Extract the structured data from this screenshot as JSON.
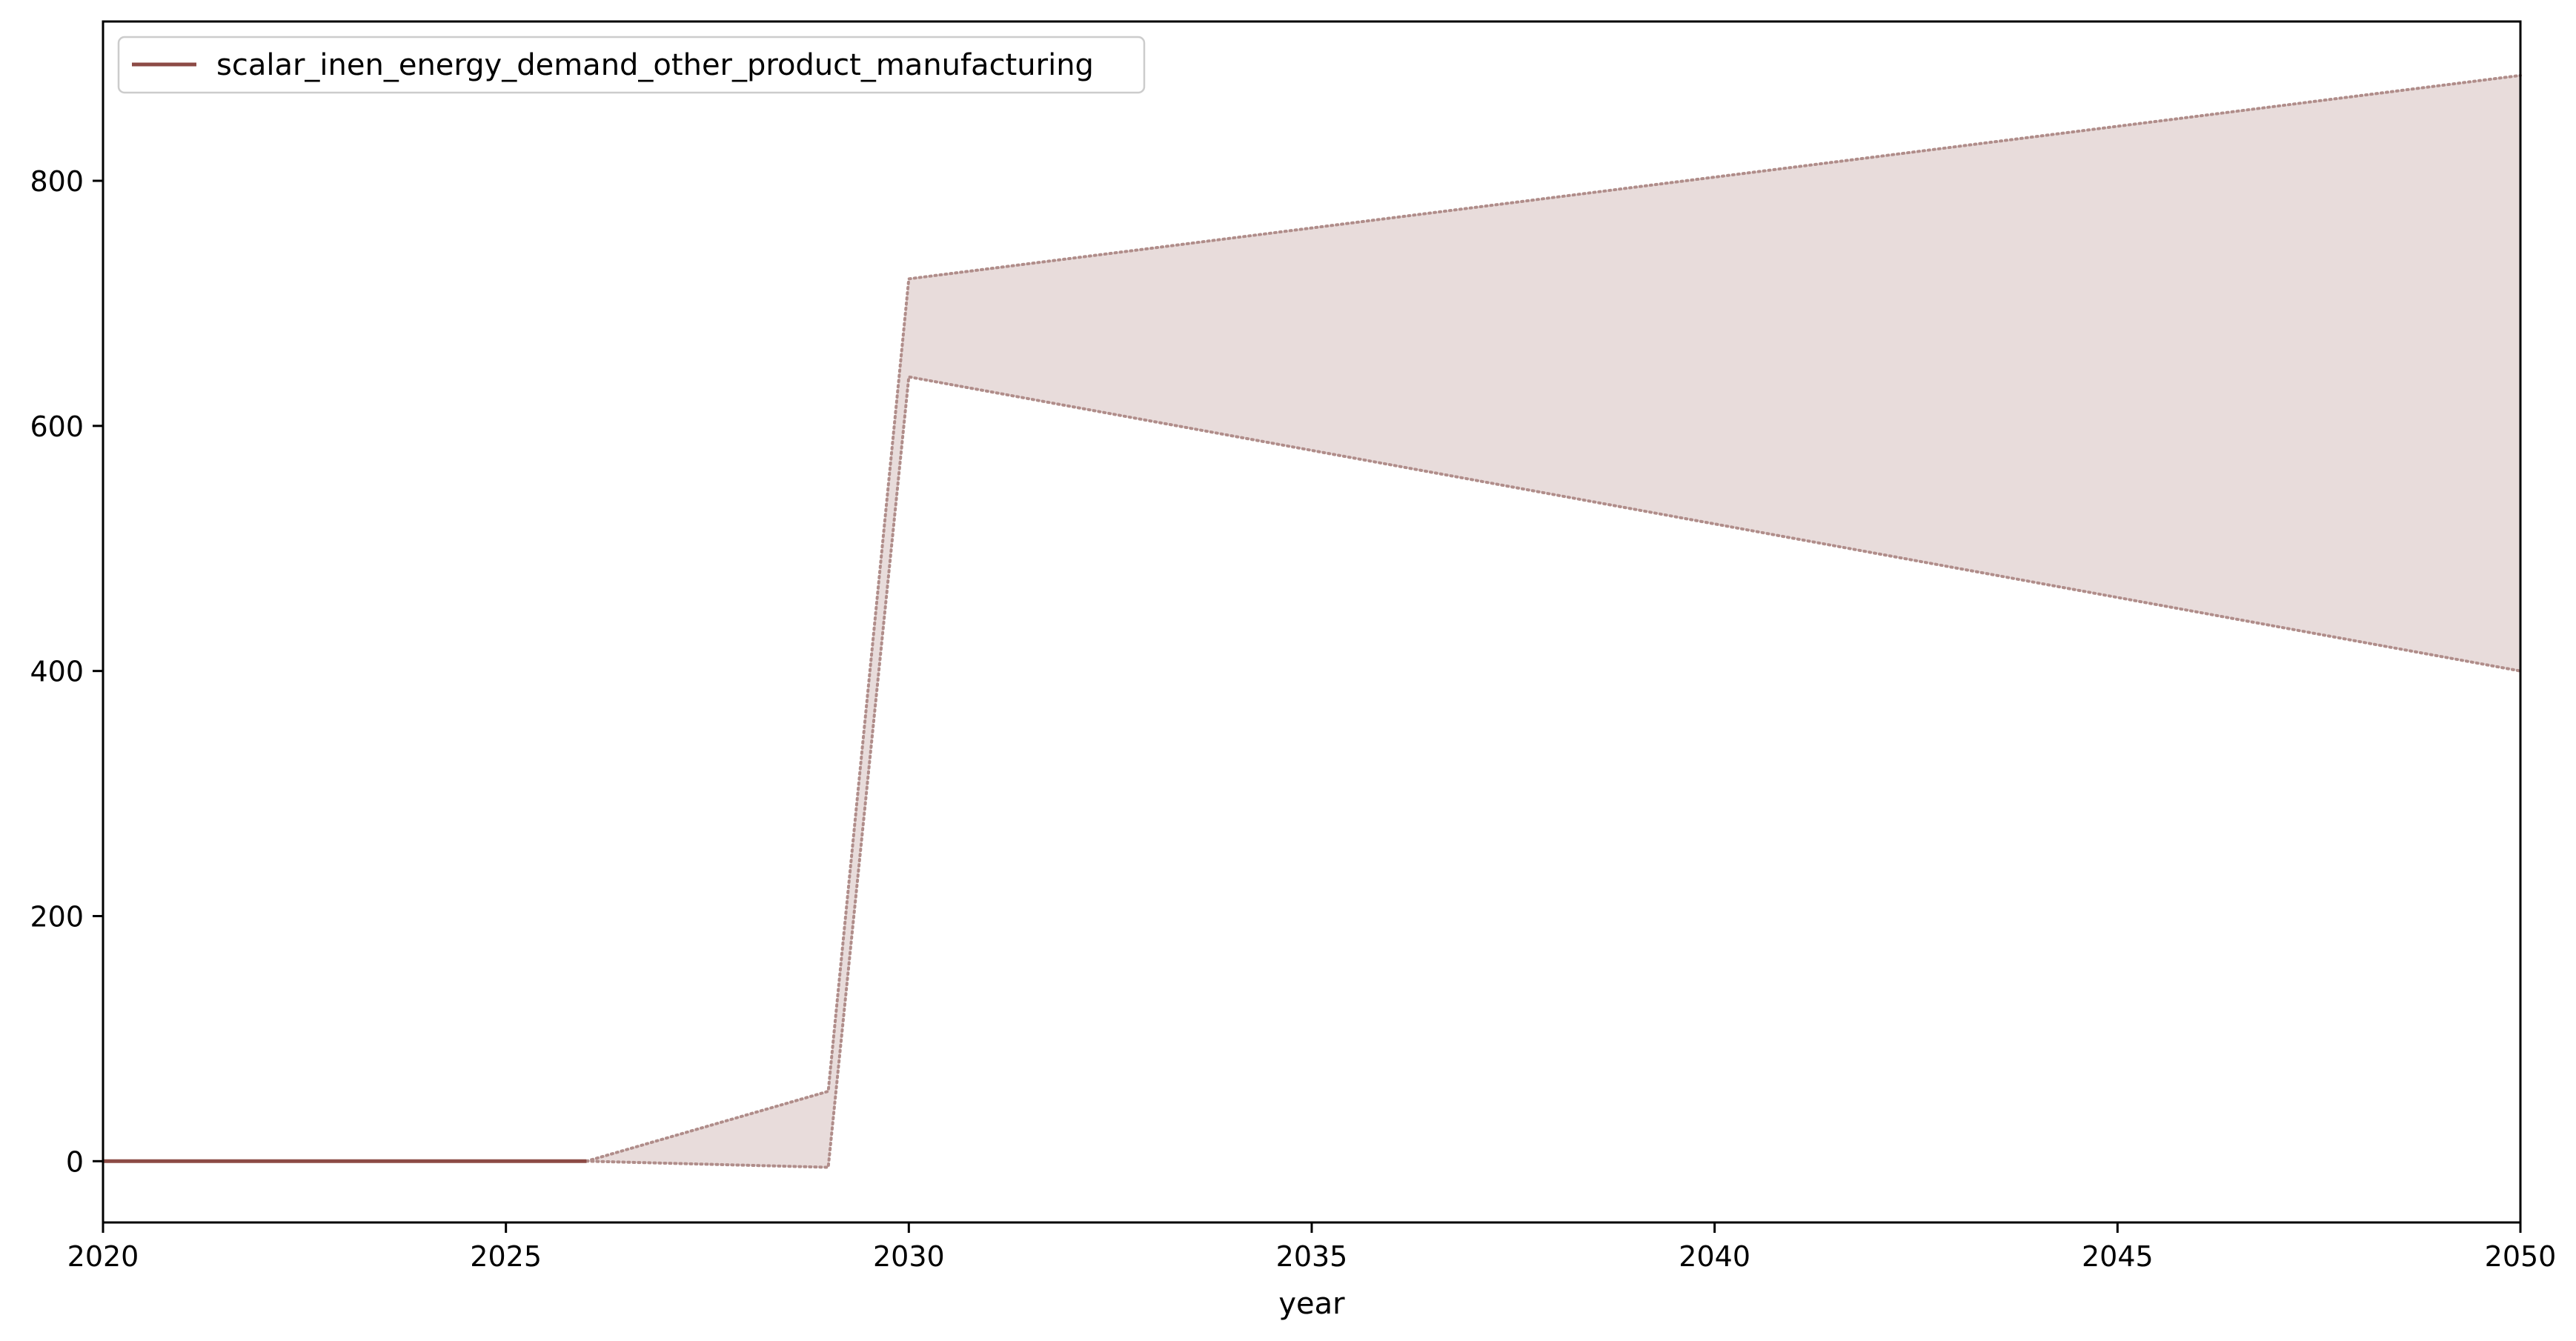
{
  "chart_data": {
    "type": "line",
    "xlabel": "year",
    "ylabel": "",
    "title": "",
    "xlim": [
      2020,
      2050
    ],
    "ylim": [
      -50,
      930
    ],
    "x_ticks": [
      2020,
      2025,
      2030,
      2035,
      2040,
      2045,
      2050
    ],
    "y_ticks": [
      0,
      200,
      400,
      600,
      800
    ],
    "grid": false,
    "legend": {
      "placement": "top-left",
      "entries": [
        "scalar_inen_energy_demand_other_product_manufacturing"
      ]
    },
    "series": [
      {
        "name": "scalar_inen_energy_demand_other_product_manufacturing",
        "color": "#8c4a45",
        "line_style": "solid",
        "points": [
          [
            2020,
            0
          ],
          [
            2026,
            0
          ]
        ]
      }
    ],
    "band": {
      "fill_color": "#e8dcdb",
      "edge_color": "#b08d8a",
      "edge_style": "dotted",
      "upper": [
        [
          2026,
          0
        ],
        [
          2029,
          57
        ],
        [
          2030,
          720
        ],
        [
          2050,
          886
        ]
      ],
      "lower": [
        [
          2026,
          0
        ],
        [
          2029,
          -5
        ],
        [
          2030,
          640
        ],
        [
          2050,
          400
        ]
      ]
    }
  }
}
